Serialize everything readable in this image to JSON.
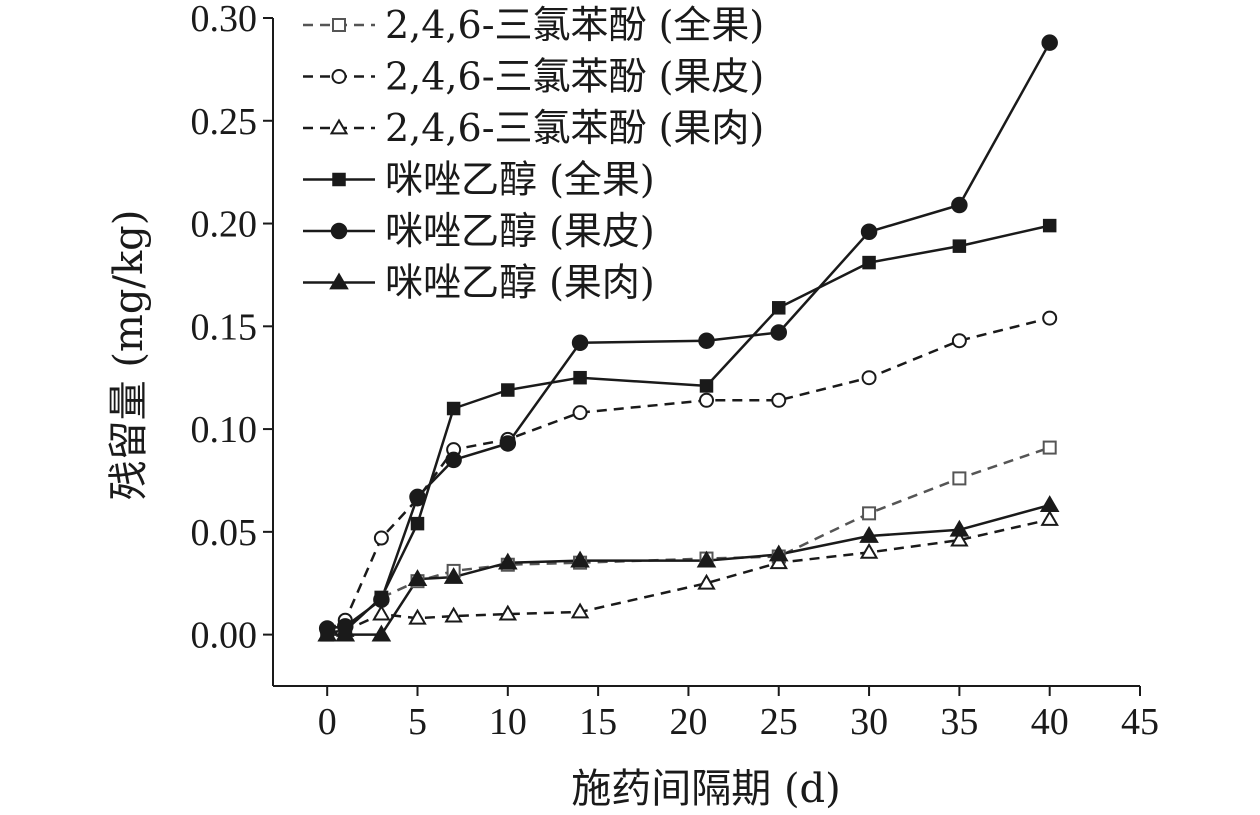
{
  "chart_data": {
    "type": "line",
    "xlabel": "施药间隔期 (d)",
    "ylabel": "残留量 (mg/kg)",
    "xlim": [
      -3,
      45
    ],
    "ylim": [
      -0.025,
      0.3
    ],
    "x_ticks": [
      0,
      5,
      10,
      15,
      20,
      25,
      30,
      35,
      40,
      45
    ],
    "y_ticks": [
      0.0,
      0.05,
      0.1,
      0.15,
      0.2,
      0.25,
      0.3
    ],
    "y_tick_labels": [
      "0.00",
      "0.05",
      "0.10",
      "0.15",
      "0.20",
      "0.25",
      "0.30"
    ],
    "x_tick_labels": [
      "0",
      "5",
      "10",
      "15",
      "20",
      "25",
      "30",
      "35",
      "40",
      "45"
    ],
    "grid": false,
    "legend_position": "top-left",
    "series": [
      {
        "name": "2,4,6-三氯苯酚 (全果)",
        "color": "#555555",
        "line_style": "dashed",
        "marker": "square-open",
        "x": [
          0,
          1,
          3,
          5,
          7,
          10,
          14,
          21,
          25,
          30,
          35,
          40
        ],
        "y": [
          0.0,
          0.002,
          0.018,
          0.026,
          0.031,
          0.034,
          0.035,
          0.037,
          0.038,
          0.059,
          0.076,
          0.091
        ]
      },
      {
        "name": "2,4,6-三氯苯酚 (果皮)",
        "color": "#1a1a1a",
        "line_style": "dashed",
        "marker": "circle-open",
        "x": [
          0,
          1,
          3,
          5,
          7,
          10,
          14,
          21,
          25,
          30,
          35,
          40
        ],
        "y": [
          0.002,
          0.007,
          0.047,
          0.066,
          0.09,
          0.095,
          0.108,
          0.114,
          0.114,
          0.125,
          0.143,
          0.154
        ]
      },
      {
        "name": "2,4,6-三氯苯酚 (果肉)",
        "color": "#1a1a1a",
        "line_style": "dashed",
        "marker": "triangle-open",
        "x": [
          0,
          1,
          3,
          5,
          7,
          10,
          14,
          21,
          25,
          30,
          35,
          40
        ],
        "y": [
          0.0,
          0.002,
          0.01,
          0.008,
          0.009,
          0.01,
          0.011,
          0.025,
          0.035,
          0.04,
          0.046,
          0.056
        ]
      },
      {
        "name": "咪唑乙醇 (全果)",
        "color": "#1a1a1a",
        "line_style": "solid",
        "marker": "square-filled",
        "x": [
          0,
          1,
          3,
          5,
          7,
          10,
          14,
          21,
          25,
          30,
          35,
          40
        ],
        "y": [
          0.001,
          0.002,
          0.018,
          0.054,
          0.11,
          0.119,
          0.125,
          0.121,
          0.159,
          0.181,
          0.189,
          0.199
        ]
      },
      {
        "name": "咪唑乙醇 (果皮)",
        "color": "#1a1a1a",
        "line_style": "solid",
        "marker": "circle-filled",
        "x": [
          0,
          1,
          3,
          5,
          7,
          10,
          14,
          21,
          25,
          30,
          35,
          40
        ],
        "y": [
          0.003,
          0.004,
          0.017,
          0.067,
          0.085,
          0.093,
          0.142,
          0.143,
          0.147,
          0.196,
          0.209,
          0.288
        ]
      },
      {
        "name": "咪唑乙醇 (果肉)",
        "color": "#1a1a1a",
        "line_style": "solid",
        "marker": "triangle-filled",
        "x": [
          0,
          1,
          3,
          5,
          7,
          10,
          14,
          21,
          25,
          30,
          35,
          40
        ],
        "y": [
          0.0,
          0.0,
          0.0,
          0.027,
          0.028,
          0.035,
          0.036,
          0.036,
          0.039,
          0.048,
          0.051,
          0.063
        ]
      }
    ]
  }
}
